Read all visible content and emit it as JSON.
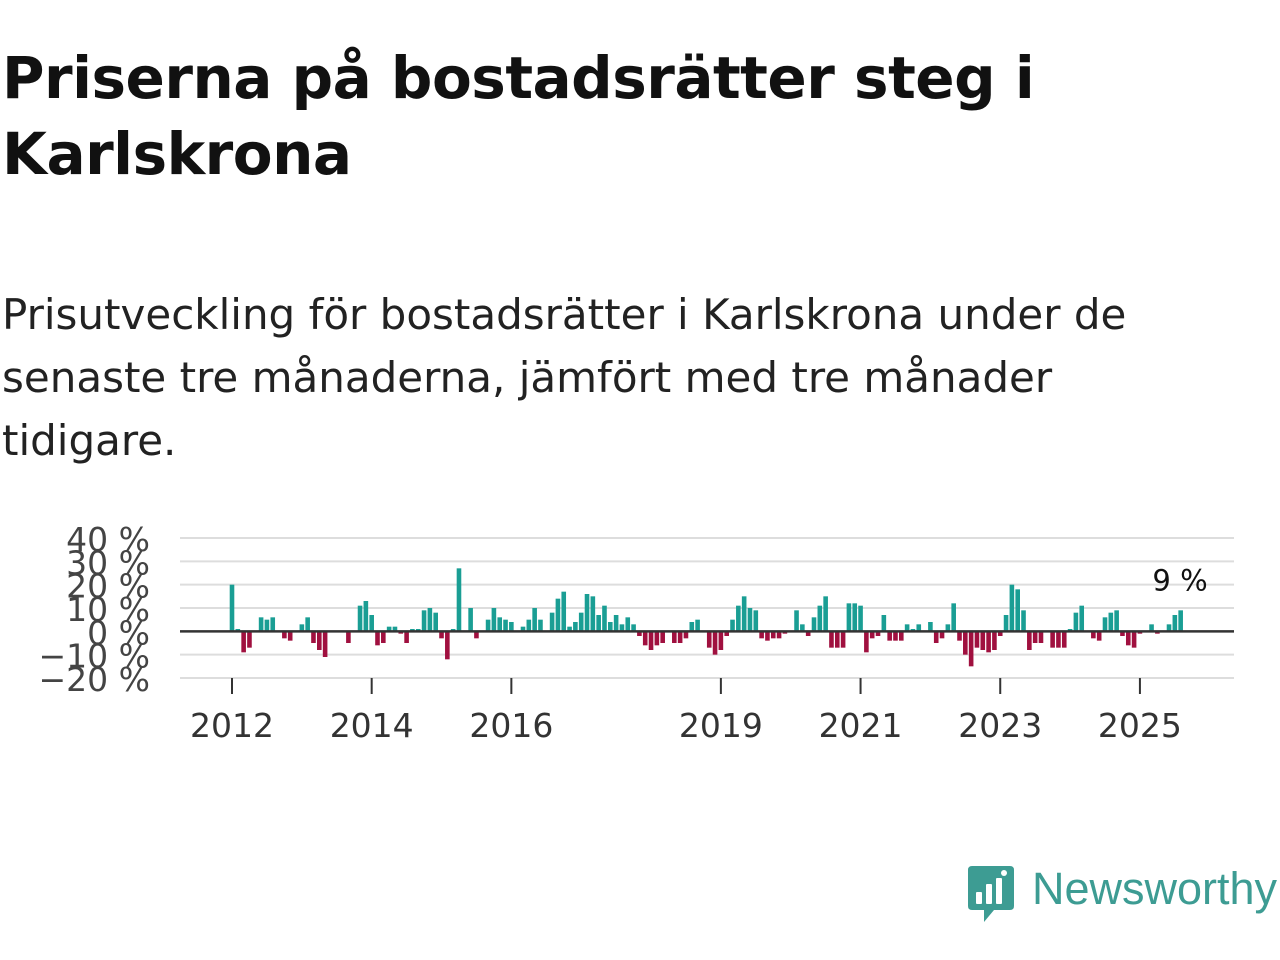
{
  "header": {
    "title": "Priserna på bostadsrätter steg i Karlskrona",
    "subtitle": "Prisutveckling för bostadsrätter i Karlskrona under de senaste tre månaderna, jämfört med tre månader tidigare."
  },
  "chart_data": {
    "type": "bar",
    "title": "Priserna på bostadsrätter steg i Karlskrona",
    "ylabel": "",
    "xlabel": "",
    "ylim": [
      -20,
      40
    ],
    "y_ticks": [
      {
        "value": 40,
        "label": "40 %"
      },
      {
        "value": 30,
        "label": "30 %"
      },
      {
        "value": 20,
        "label": "20 %"
      },
      {
        "value": 10,
        "label": "10 %"
      },
      {
        "value": 0,
        "label": "0 %"
      },
      {
        "value": -10,
        "label": "−10 %"
      },
      {
        "value": -20,
        "label": "−20 %"
      }
    ],
    "x_ticks": [
      {
        "index": 0,
        "label": "2012"
      },
      {
        "index": 24,
        "label": "2014"
      },
      {
        "index": 48,
        "label": "2016"
      },
      {
        "index": 84,
        "label": "2019"
      },
      {
        "index": 108,
        "label": "2021"
      },
      {
        "index": 132,
        "label": "2023"
      },
      {
        "index": 156,
        "label": "2025"
      }
    ],
    "start": "2012-01",
    "colors": {
      "positive": "#1a9e94",
      "negative": "#a0103f",
      "grid": "#dddddd",
      "zero": "#333333"
    },
    "last_label": "9 %",
    "values": [
      20,
      1,
      -9,
      -7,
      0,
      6,
      5,
      6,
      0,
      -3,
      -4,
      0,
      3,
      6,
      -5,
      -8,
      -11,
      0,
      0,
      0,
      -5,
      0,
      11,
      13,
      7,
      -6,
      -5,
      2,
      2,
      -1,
      -5,
      1,
      1,
      9,
      10,
      8,
      -3,
      -12,
      1,
      27,
      0,
      10,
      -3,
      0,
      5,
      10,
      6,
      5,
      4,
      0,
      2,
      5,
      10,
      5,
      0,
      8,
      14,
      17,
      2,
      4,
      8,
      16,
      15,
      7,
      11,
      4,
      7,
      3,
      6,
      3,
      -2,
      -6,
      -8,
      -6,
      -5,
      0,
      -5,
      -5,
      -3,
      4,
      5,
      0,
      -7,
      -10,
      -8,
      -2,
      5,
      11,
      15,
      10,
      9,
      -3,
      -4,
      -3,
      -3,
      -1,
      0,
      9,
      3,
      -2,
      6,
      11,
      15,
      -7,
      -7,
      -7,
      12,
      12,
      11,
      -9,
      -3,
      -2,
      7,
      -4,
      -4,
      -4,
      3,
      1,
      3,
      0,
      4,
      -5,
      -3,
      3,
      12,
      -4,
      -10,
      -15,
      -7,
      -8,
      -9,
      -8,
      -2,
      7,
      20,
      18,
      9,
      -8,
      -5,
      -5,
      0,
      -7,
      -7,
      -7,
      1,
      8,
      11,
      0,
      -3,
      -4,
      6,
      8,
      9,
      -2,
      -6,
      -7,
      -1,
      0,
      3,
      -1,
      0,
      3,
      7,
      9
    ]
  },
  "footer": {
    "brand": "Newsworthy"
  }
}
